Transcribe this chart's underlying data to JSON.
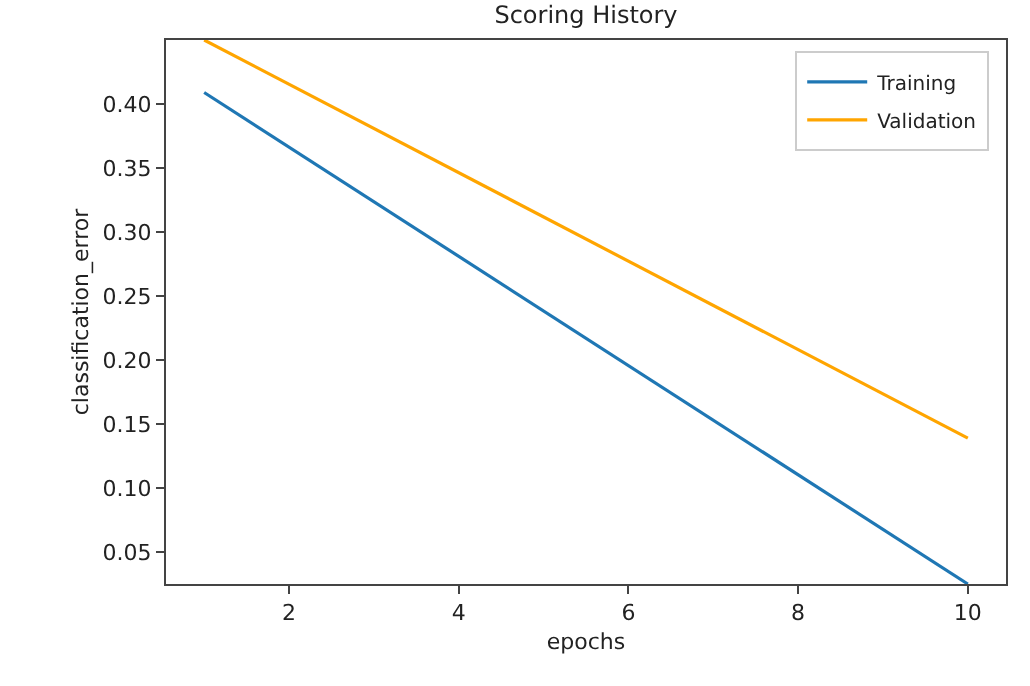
{
  "chart_data": {
    "type": "line",
    "title": "Scoring History",
    "xlabel": "epochs",
    "ylabel": "classification_error",
    "x": [
      1,
      10
    ],
    "series": [
      {
        "name": "Training",
        "color": "#1f77b4",
        "values": [
          0.409,
          0.025
        ]
      },
      {
        "name": "Validation",
        "color": "#ffa500",
        "values": [
          0.45,
          0.139
        ]
      }
    ],
    "xlim": [
      0.55,
      10.45
    ],
    "xticks": [
      2,
      4,
      6,
      8,
      10
    ],
    "ylim": [
      0.025,
      0.45
    ],
    "yticks": [
      {
        "value": 0.05,
        "label": "0.05"
      },
      {
        "value": 0.1,
        "label": "0.10"
      },
      {
        "value": 0.15,
        "label": "0.15"
      },
      {
        "value": 0.2,
        "label": "0.20"
      },
      {
        "value": 0.25,
        "label": "0.25"
      },
      {
        "value": 0.3,
        "label": "0.30"
      },
      {
        "value": 0.35,
        "label": "0.35"
      },
      {
        "value": 0.4,
        "label": "0.40"
      }
    ],
    "legend": "top right",
    "marker": "none",
    "line_style": "solid"
  }
}
